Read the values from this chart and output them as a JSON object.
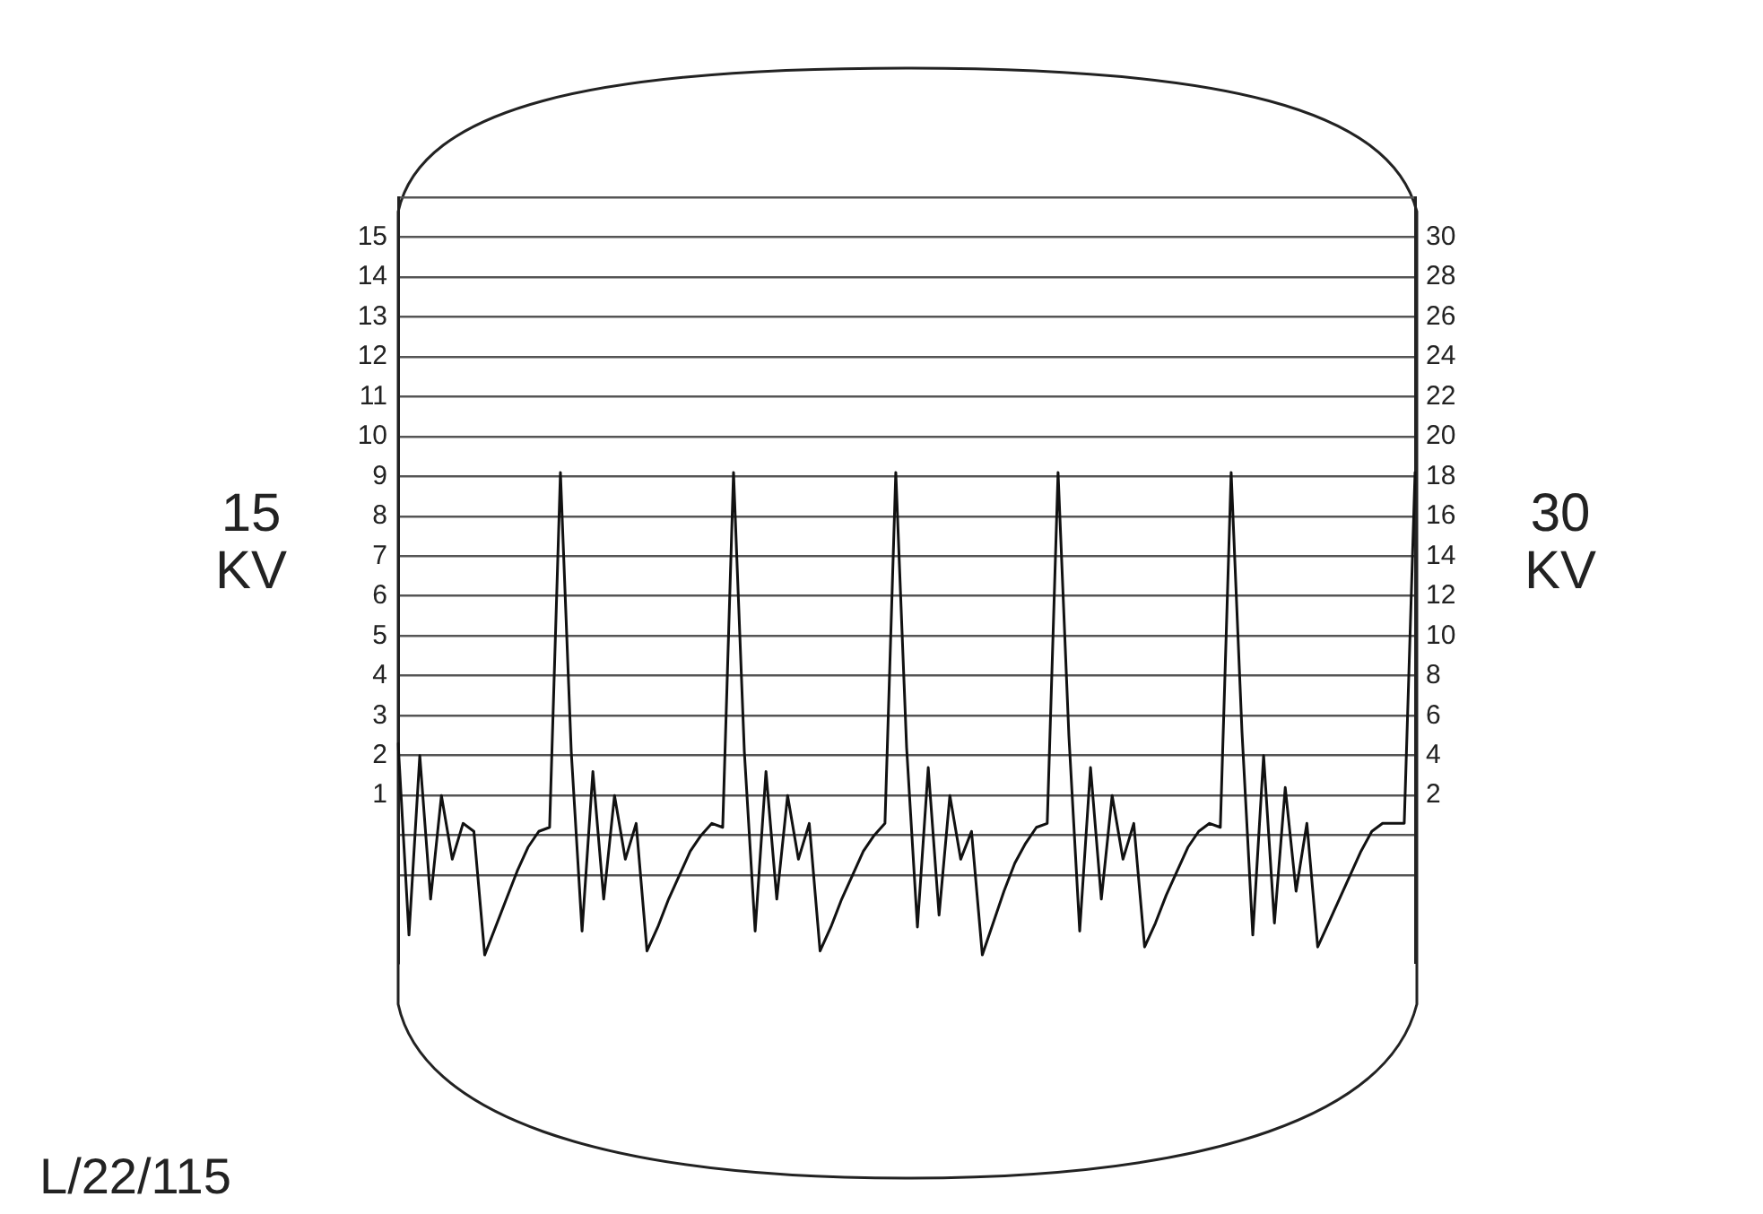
{
  "chart_data": {
    "type": "line",
    "ylabel": "15\nKV",
    "y2label": "30\nKV",
    "annotations": [
      "L/22/115"
    ],
    "categories": [
      null,
      null,
      null,
      null,
      null,
      null,
      null,
      null,
      null,
      null,
      null,
      null,
      null,
      null,
      null,
      null,
      null,
      null,
      null,
      null,
      null,
      null,
      null,
      null,
      null,
      null,
      null,
      null,
      null,
      null,
      null,
      null,
      null,
      null,
      null,
      null,
      null,
      null,
      null,
      null,
      null,
      null,
      null,
      null,
      null,
      null,
      null,
      null,
      null,
      null,
      null,
      null,
      null,
      null,
      null,
      null,
      null,
      null,
      null,
      null,
      null,
      null,
      null,
      null,
      null,
      null,
      null,
      null,
      null,
      null,
      null,
      null,
      null,
      null,
      null,
      null,
      null,
      null,
      null,
      null,
      null,
      null,
      null,
      null,
      null,
      null,
      null,
      null,
      null,
      null,
      null,
      null,
      null,
      null,
      null
    ],
    "series": [
      {
        "color": "#111111",
        "values": [
          2.3,
          -2.5,
          2.0,
          -1.6,
          1.0,
          -0.6,
          0.3,
          0.1,
          -3.0,
          -2.3,
          -1.6,
          -0.9,
          -0.3,
          0.1,
          0.2,
          9.1,
          2.1,
          -2.4,
          1.6,
          -1.6,
          1.0,
          -0.6,
          0.3,
          -2.9,
          -2.3,
          -1.6,
          -1.0,
          -0.4,
          0.0,
          0.3,
          0.2,
          9.1,
          2.1,
          -2.4,
          1.6,
          -1.6,
          1.0,
          -0.6,
          0.3,
          -2.9,
          -2.3,
          -1.6,
          -1.0,
          -0.4,
          0.0,
          0.3,
          9.1,
          2.2,
          -2.3,
          1.7,
          -2.0,
          1.0,
          -0.6,
          0.1,
          -3.0,
          -2.2,
          -1.4,
          -0.7,
          -0.2,
          0.2,
          0.3,
          9.1,
          2.5,
          -2.4,
          1.7,
          -1.6,
          1.0,
          -0.6,
          0.3,
          -2.8,
          -2.2,
          -1.5,
          -0.9,
          -0.3,
          0.1,
          0.3,
          0.2,
          9.1,
          2.6,
          -2.5,
          2.0,
          -2.2,
          1.2,
          -1.4,
          0.3,
          -2.8,
          -2.2,
          -1.6,
          -1.0,
          -0.4,
          0.1,
          0.3,
          0.3,
          0.3,
          9.1
        ]
      }
    ],
    "ylim": [
      -3.2,
      16
    ],
    "yticks": [
      {
        "value": -1,
        "label": null
      },
      {
        "value": 0,
        "label": null
      },
      1,
      2,
      3,
      4,
      5,
      6,
      7,
      8,
      9,
      10,
      11,
      12,
      13,
      14,
      15,
      {
        "value": 16,
        "label": null
      }
    ],
    "y2lim": [
      -6.4,
      32
    ],
    "y2ticks": [
      2,
      4,
      6,
      8,
      10,
      12,
      14,
      16,
      18,
      20,
      22,
      24,
      26,
      28,
      30
    ],
    "grid": "y",
    "legend": false,
    "marker": "none"
  }
}
